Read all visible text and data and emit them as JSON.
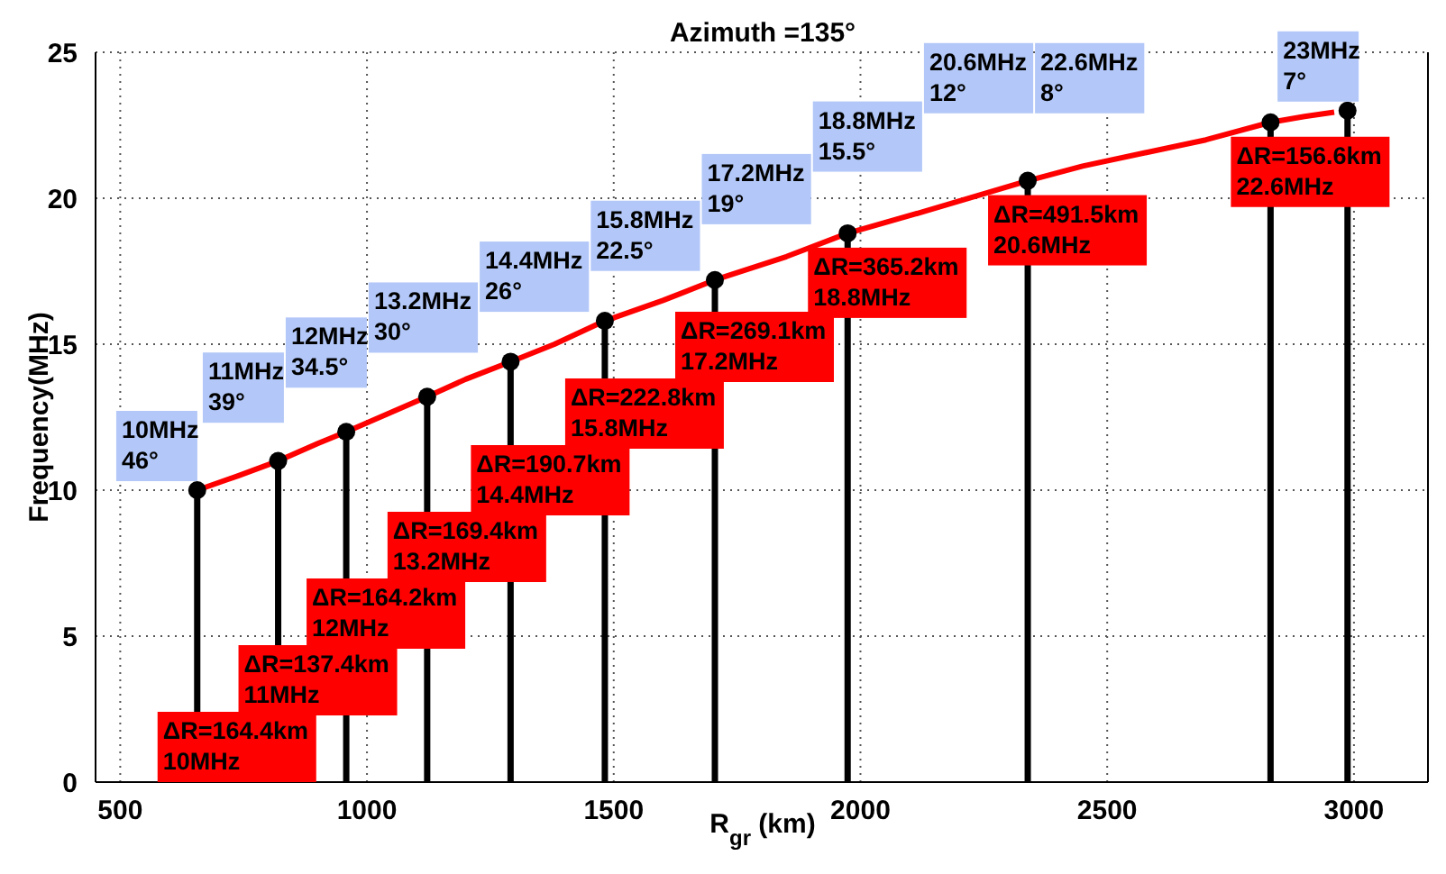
{
  "chart_data": {
    "type": "lollipop",
    "title": "Azimuth =135°",
    "xlabel": "R$_{gr}$ (km)",
    "ylabel": "Frequency(MHz)",
    "xlim": [
      450,
      3150
    ],
    "xticks": [
      500,
      1000,
      1500,
      2000,
      2500,
      3000
    ],
    "ylim": [
      0,
      25
    ],
    "yticks": [
      0,
      5,
      10,
      15,
      20,
      25
    ],
    "grid": true,
    "series": [
      {
        "color": "#000000",
        "marker": "circle",
        "x": [
          656,
          820,
          958,
          1122,
          1291,
          1482,
          1705,
          1974,
          2339,
          2831,
          2987
        ],
        "values": [
          10,
          11,
          12,
          13.2,
          14.4,
          15.8,
          17.2,
          18.8,
          20.6,
          22.6,
          23
        ]
      },
      {
        "type": "line",
        "color": "#ff0000",
        "line_style": "solid",
        "x": [
          656,
          740,
          820,
          900,
          958,
          1040,
          1122,
          1200,
          1291,
          1380,
          1482,
          1600,
          1705,
          1850,
          1974,
          2140,
          2339,
          2450,
          2700,
          2831,
          2900,
          2960
        ],
        "values": [
          10,
          10.5,
          11,
          11.6,
          12,
          12.6,
          13.2,
          13.8,
          14.4,
          15,
          15.8,
          16.5,
          17.2,
          18,
          18.8,
          19.6,
          20.6,
          21.1,
          22,
          22.6,
          22.8,
          22.95
        ]
      }
    ],
    "annotations": [
      "10MHz\n46°",
      "11MHz\n39°",
      "12MHz\n34.5°",
      "13.2MHz\n30°",
      "14.4MHz\n26°",
      "15.8MHz\n22.5°",
      "17.2MHz\n19°",
      "18.8MHz\n15.5°",
      "20.6MHz\n12°",
      "22.6MHz\n8°",
      "23MHz\n7°",
      "ΔR=164.4km\n10MHz",
      "ΔR=137.4km\n11MHz",
      "ΔR=164.2km\n12MHz",
      "ΔR=169.4km\n13.2MHz",
      "ΔR=190.7km\n14.4MHz",
      "ΔR=222.8km\n15.8MHz",
      "ΔR=269.1km\n17.2MHz",
      "ΔR=365.2km\n18.8MHz",
      "ΔR=491.5km\n20.6MHz",
      "ΔR=156.6km\n22.6MHz"
    ]
  }
}
